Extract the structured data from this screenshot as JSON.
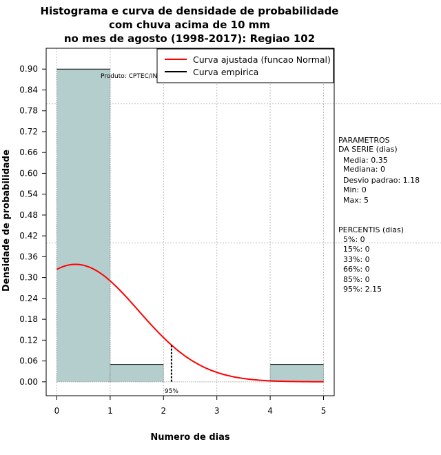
{
  "chart_data": {
    "type": "histogram",
    "title_lines": [
      "Histograma e curva de densidade de probabilidade",
      "com chuva acima de 10 mm",
      "no mes de agosto (1998-2017): Regiao 102"
    ],
    "xlabel": "Numero de dias",
    "ylabel": "Densidade de probabilidade",
    "xlim": [
      -0.2,
      5.2
    ],
    "ylim": [
      -0.04,
      0.96
    ],
    "x_ticks": [
      0,
      1,
      2,
      3,
      4,
      5
    ],
    "y_ticks": [
      "0.00",
      "0.06",
      "0.12",
      "0.18",
      "0.24",
      "0.30",
      "0.36",
      "0.42",
      "0.48",
      "0.54",
      "0.60",
      "0.66",
      "0.72",
      "0.78",
      "0.84",
      "0.90"
    ],
    "bins": [
      {
        "x0": 0,
        "x1": 1,
        "density": 0.9
      },
      {
        "x0": 1,
        "x1": 2,
        "density": 0.05
      },
      {
        "x0": 2,
        "x1": 3,
        "density": 0.0
      },
      {
        "x0": 3,
        "x1": 4,
        "density": 0.0
      },
      {
        "x0": 4,
        "x1": 5,
        "density": 0.05
      }
    ],
    "fitted_curve": {
      "name": "Curva ajustada (funcao Normal)",
      "color": "#ff0000",
      "mean": 0.35,
      "sd": 1.18,
      "x_range": [
        0,
        5
      ]
    },
    "empirical_curve": {
      "name": "Curva empirica",
      "color": "#000000"
    },
    "percentile_marker": {
      "x": 2.15,
      "label": "95%"
    },
    "hgrid_at": [
      0.4,
      0.8
    ],
    "watermark": "Produto: CPTEC/INPE",
    "fill_color": "#b4cdcd"
  },
  "side_panel": {
    "params_header": [
      "PARAMETROS",
      "DA SERIE (dias)"
    ],
    "params": [
      "Media: 0.35",
      "Mediana: 0",
      "Desvio padrao: 1.18",
      "Min: 0",
      "Max: 5"
    ],
    "percentis_header": "PERCENTIS (dias)",
    "percentis": [
      "5%: 0",
      "15%: 0",
      "33%: 0",
      "66%: 0",
      "85%: 0",
      "95%: 2.15"
    ]
  }
}
